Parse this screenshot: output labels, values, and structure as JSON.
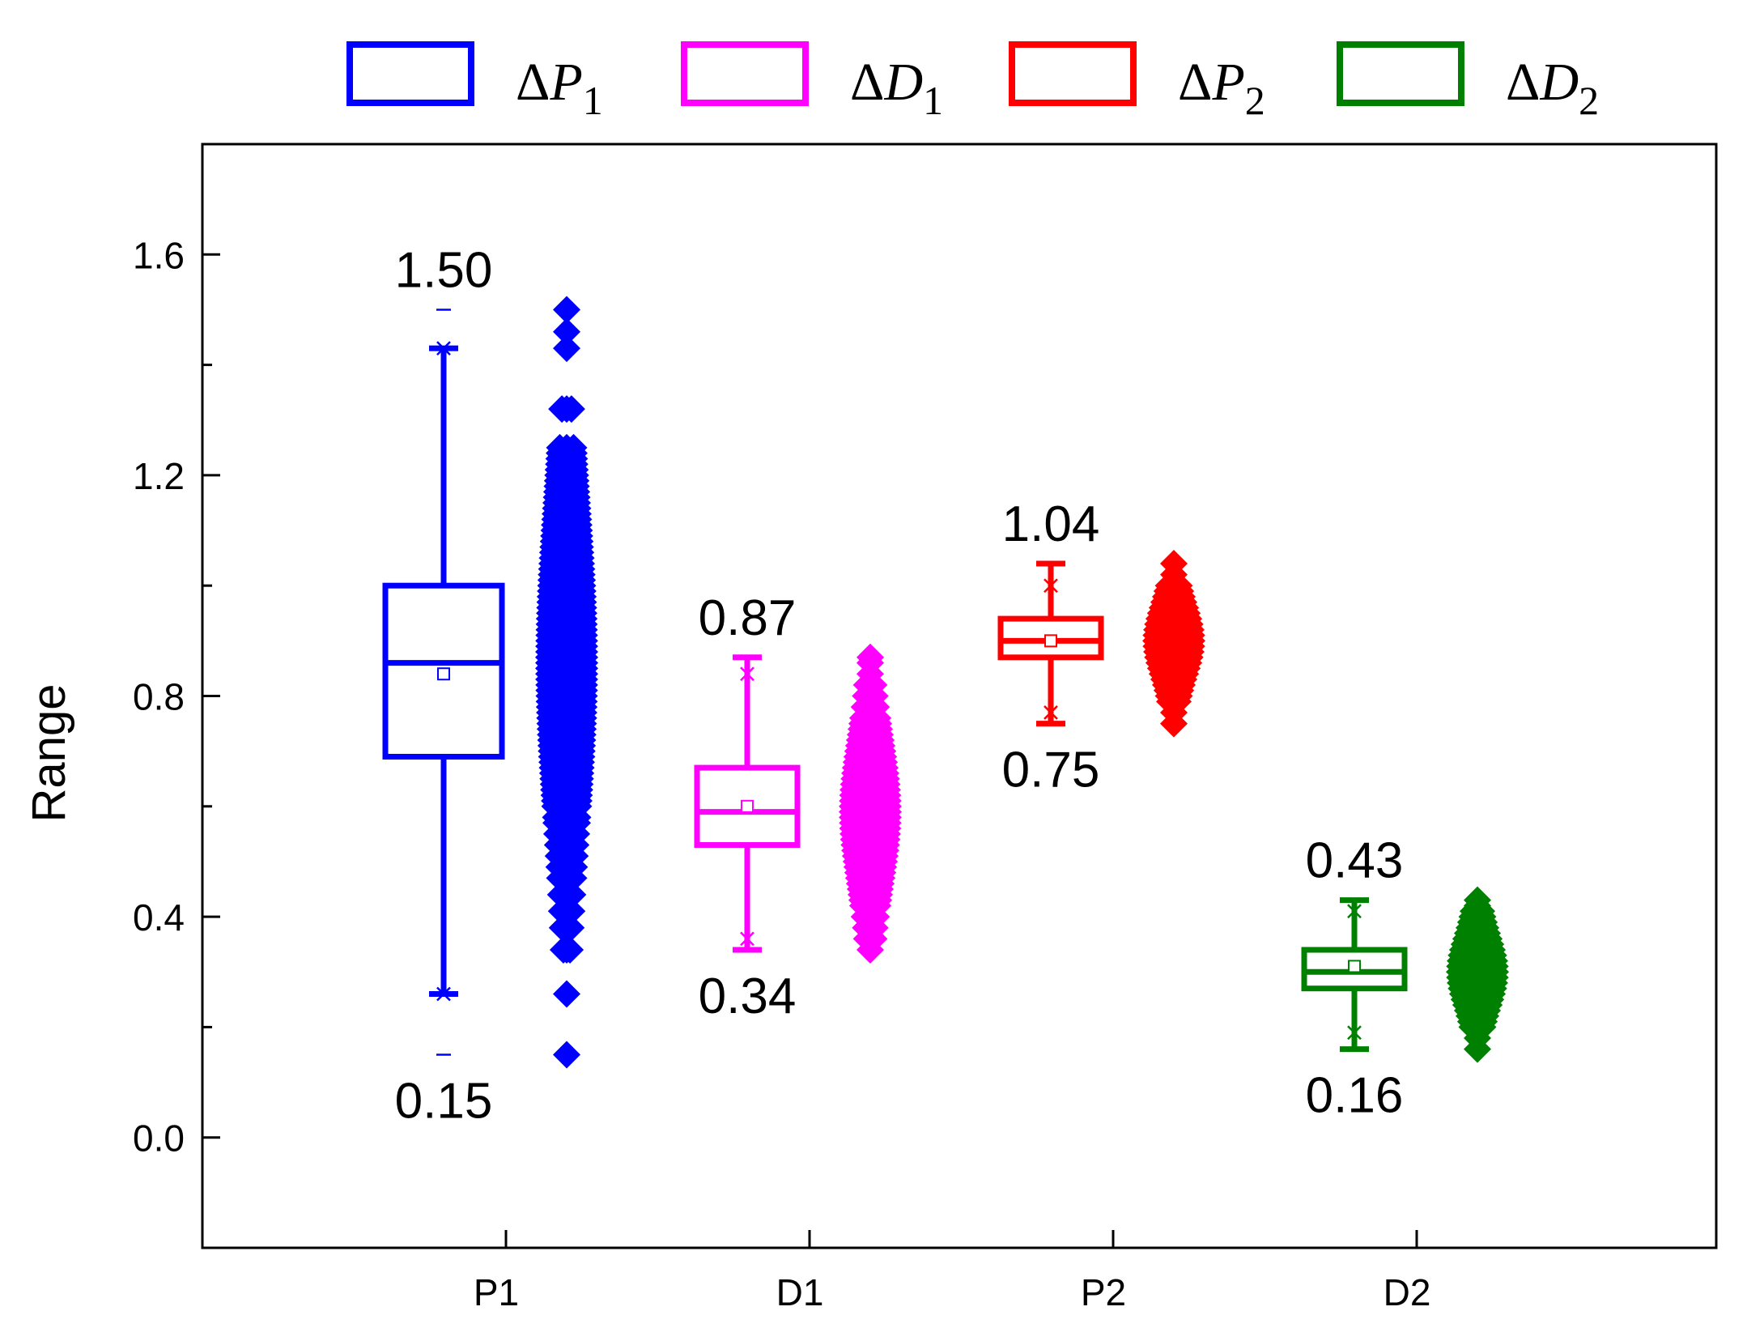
{
  "chart_data": {
    "type": "box",
    "title": "",
    "xlabel": "",
    "ylabel": "Range",
    "ylim": [
      -0.2,
      1.8
    ],
    "yticks": [
      "0.0",
      "0.4",
      "0.8",
      "1.2",
      "1.6"
    ],
    "categories": [
      "P1",
      "D1",
      "P2",
      "D2"
    ],
    "legend": {
      "position": "top",
      "entries": [
        {
          "symbol": "Δ",
          "letter": "P",
          "sub": "1",
          "color": "#0000ff"
        },
        {
          "symbol": "Δ",
          "letter": "D",
          "sub": "1",
          "color": "#ff00ff"
        },
        {
          "symbol": "Δ",
          "letter": "P",
          "sub": "2",
          "color": "#ff0000"
        },
        {
          "symbol": "Δ",
          "letter": "D",
          "sub": "2",
          "color": "#008000"
        }
      ]
    },
    "series": [
      {
        "name": "ΔP1",
        "category": "P1",
        "color": "#0000ff",
        "min": 0.15,
        "p1": 0.26,
        "q1": 0.69,
        "median": 0.86,
        "mean": 0.84,
        "q3": 1.0,
        "p99": 1.43,
        "max": 1.5,
        "whisker_low": 0.26,
        "whisker_high": 1.43,
        "label_max": "1.50",
        "label_min": "0.15",
        "points": [
          0.15,
          0.26,
          0.34,
          0.38,
          0.41,
          0.44,
          0.47,
          0.49,
          0.51,
          0.53,
          0.55,
          0.57,
          0.58,
          0.6,
          0.61,
          0.62,
          0.63,
          0.64,
          0.65,
          0.66,
          0.67,
          0.68,
          0.69,
          0.7,
          0.71,
          0.72,
          0.73,
          0.74,
          0.75,
          0.76,
          0.77,
          0.78,
          0.79,
          0.8,
          0.81,
          0.82,
          0.83,
          0.84,
          0.85,
          0.86,
          0.87,
          0.88,
          0.89,
          0.9,
          0.91,
          0.92,
          0.93,
          0.94,
          0.95,
          0.96,
          0.97,
          0.98,
          0.99,
          1.0,
          1.01,
          1.02,
          1.03,
          1.04,
          1.05,
          1.06,
          1.07,
          1.08,
          1.09,
          1.1,
          1.11,
          1.12,
          1.13,
          1.14,
          1.15,
          1.16,
          1.17,
          1.18,
          1.19,
          1.2,
          1.21,
          1.22,
          1.23,
          1.24,
          1.25,
          1.32,
          1.43,
          1.46,
          1.5
        ]
      },
      {
        "name": "ΔD1",
        "category": "D1",
        "color": "#ff00ff",
        "min": 0.34,
        "p1": 0.36,
        "q1": 0.53,
        "median": 0.59,
        "mean": 0.6,
        "q3": 0.67,
        "p99": 0.84,
        "max": 0.87,
        "whisker_low": 0.34,
        "whisker_high": 0.87,
        "label_max": "0.87",
        "label_min": "0.34",
        "points": [
          0.34,
          0.36,
          0.38,
          0.4,
          0.42,
          0.43,
          0.44,
          0.45,
          0.46,
          0.47,
          0.48,
          0.49,
          0.5,
          0.51,
          0.52,
          0.53,
          0.54,
          0.55,
          0.56,
          0.57,
          0.58,
          0.59,
          0.6,
          0.61,
          0.62,
          0.63,
          0.64,
          0.65,
          0.66,
          0.67,
          0.68,
          0.69,
          0.7,
          0.71,
          0.72,
          0.73,
          0.74,
          0.75,
          0.76,
          0.78,
          0.8,
          0.82,
          0.84,
          0.86,
          0.87
        ]
      },
      {
        "name": "ΔP2",
        "category": "P2",
        "color": "#ff0000",
        "min": 0.75,
        "p1": 0.77,
        "q1": 0.87,
        "median": 0.9,
        "mean": 0.9,
        "q3": 0.94,
        "p99": 1.0,
        "max": 1.04,
        "whisker_low": 0.75,
        "whisker_high": 1.04,
        "label_max": "1.04",
        "label_min": "0.75",
        "points": [
          0.75,
          0.77,
          0.79,
          0.8,
          0.81,
          0.82,
          0.83,
          0.84,
          0.85,
          0.86,
          0.87,
          0.88,
          0.89,
          0.9,
          0.91,
          0.92,
          0.93,
          0.94,
          0.95,
          0.96,
          0.97,
          0.98,
          0.99,
          1.0,
          1.02,
          1.04
        ]
      },
      {
        "name": "ΔD2",
        "category": "D2",
        "color": "#008000",
        "min": 0.16,
        "p1": 0.19,
        "q1": 0.27,
        "median": 0.3,
        "mean": 0.31,
        "q3": 0.34,
        "p99": 0.41,
        "max": 0.43,
        "whisker_low": 0.16,
        "whisker_high": 0.43,
        "label_max": "0.43",
        "label_min": "0.16",
        "points": [
          0.16,
          0.18,
          0.2,
          0.21,
          0.22,
          0.23,
          0.24,
          0.25,
          0.26,
          0.27,
          0.28,
          0.29,
          0.3,
          0.31,
          0.32,
          0.33,
          0.34,
          0.35,
          0.36,
          0.37,
          0.38,
          0.39,
          0.4,
          0.41,
          0.42,
          0.43
        ]
      }
    ]
  }
}
